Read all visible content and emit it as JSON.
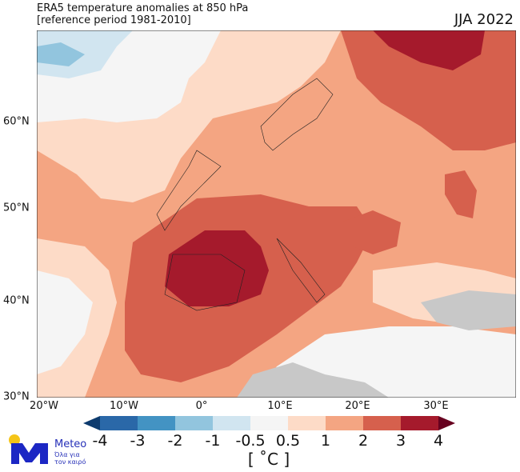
{
  "title": {
    "line1": "ERA5 temperature anomalies at 850 hPa",
    "line2": "[reference period 1981-2010]",
    "season": "JJA 2022"
  },
  "map": {
    "longitude_labels": [
      "20°W",
      "10°W",
      "0°",
      "10°E",
      "20°E",
      "30°E"
    ],
    "latitude_labels": [
      "60°N",
      "50°N",
      "40°N",
      "30°N"
    ]
  },
  "colorbar": {
    "ticks": [
      "-4",
      "-3",
      "-2",
      "-1",
      "-0.5",
      "0.5",
      "1",
      "2",
      "3",
      "4"
    ],
    "unit": "[ ˚C ]",
    "colors": [
      "#2a68a8",
      "#4393c3",
      "#92c5de",
      "#d1e5f0",
      "#f5f5f5",
      "#fddbc7",
      "#f4a582",
      "#d6604d",
      "#a51a2c"
    ],
    "extend_low": "#0d3b6e",
    "extend_high": "#67001f"
  },
  "logo": {
    "name": "Meteo",
    "tagline_1": "Όλα για",
    "tagline_2": "τον καιρό"
  }
}
